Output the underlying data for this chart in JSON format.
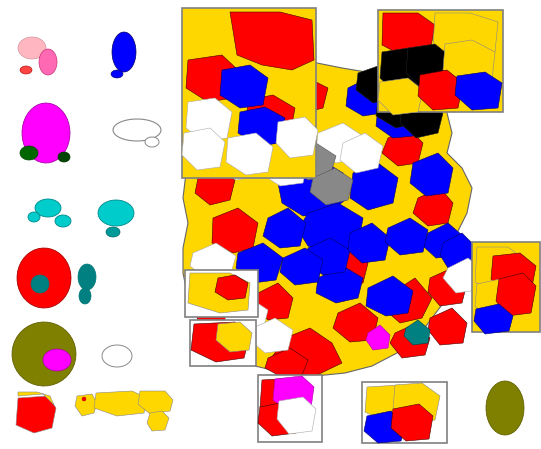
{
  "figsize": [
    5.41,
    4.49
  ],
  "dpi": 100,
  "colors": {
    "yellow": "#FFD700",
    "red": "#FF0000",
    "blue": "#0000FF",
    "black": "#000000",
    "white": "#FFFFFF",
    "pink": "#FF69B4",
    "light_pink": "#FFB6C1",
    "magenta": "#FF00FF",
    "teal": "#008080",
    "cyan": "#00CCCC",
    "olive": "#808000",
    "gray": "#888888",
    "background": "#FFFFFF"
  }
}
